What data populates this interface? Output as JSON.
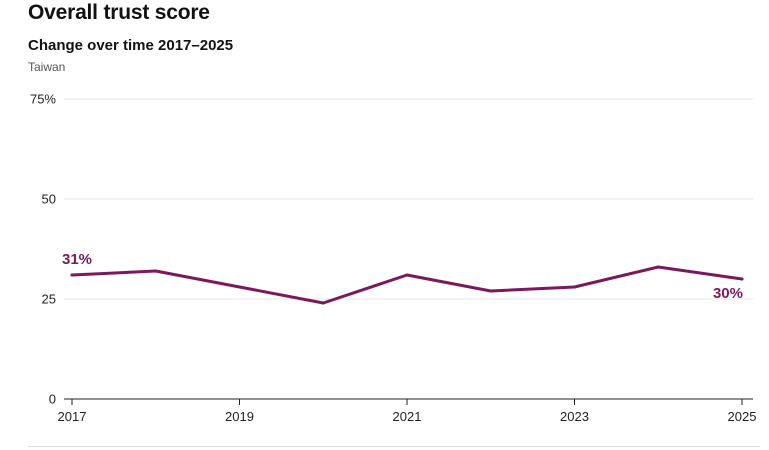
{
  "chart_data": {
    "type": "line",
    "title": "Overall trust score",
    "subtitle": "Change over time 2017–2025",
    "region": "Taiwan",
    "x": [
      2017,
      2018,
      2019,
      2020,
      2021,
      2022,
      2023,
      2024,
      2025
    ],
    "series": [
      {
        "values": [
          31,
          32,
          28,
          24,
          31,
          27,
          28,
          33,
          30
        ],
        "color": "#7a1a5c"
      }
    ],
    "xticks": [
      2017,
      2019,
      2021,
      2023,
      2025
    ],
    "xtick_labels": [
      "2017",
      "2019",
      "2021",
      "2023",
      "2025"
    ],
    "yticks": [
      0,
      25,
      50,
      75
    ],
    "ytick_labels": [
      "0",
      "25",
      "50",
      "75%"
    ],
    "ylim": [
      0,
      75
    ],
    "xlim": [
      2017,
      2025
    ],
    "grid": true,
    "annotations": {
      "start_label": "31%",
      "end_label": "30%"
    }
  }
}
